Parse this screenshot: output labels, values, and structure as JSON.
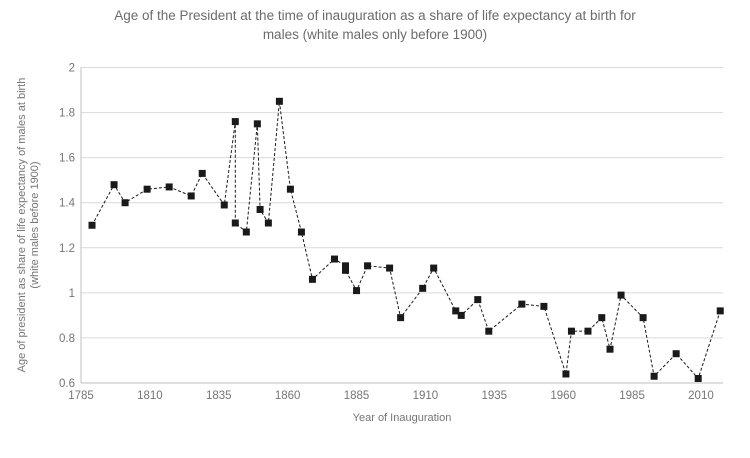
{
  "chart_data": {
    "type": "line",
    "title": "Age of the President at the time of inauguration as a share of life expectancy at birth for males (white males only before 1900)",
    "title_lines": [
      "Age of the President at the time of inauguration as a share of life expectancy at birth for",
      "males (white males only before 1900)"
    ],
    "xlabel": "Year of Inauguration",
    "ylabel": "Age of president as share of life expectancy of males at birth (white males before 1900)",
    "ylabel_lines": [
      "Age of president  as share of life expectancy of males at birth",
      "(white males  before 1900)"
    ],
    "x": [
      1789,
      1797,
      1801,
      1809,
      1817,
      1825,
      1829,
      1837,
      1841,
      1841,
      1845,
      1849,
      1850,
      1853,
      1857,
      1861,
      1865,
      1869,
      1877,
      1881,
      1881,
      1885,
      1889,
      1897,
      1901,
      1909,
      1913,
      1921,
      1923,
      1929,
      1933,
      1945,
      1953,
      1961,
      1963,
      1969,
      1974,
      1977,
      1981,
      1989,
      1993,
      2001,
      2009,
      2017
    ],
    "y": [
      1.3,
      1.48,
      1.4,
      1.46,
      1.47,
      1.43,
      1.53,
      1.39,
      1.76,
      1.31,
      1.27,
      1.75,
      1.37,
      1.31,
      1.85,
      1.46,
      1.27,
      1.06,
      1.15,
      1.12,
      1.1,
      1.01,
      1.12,
      1.11,
      0.89,
      1.02,
      1.11,
      0.92,
      0.9,
      0.97,
      0.83,
      0.95,
      0.94,
      0.64,
      0.83,
      0.83,
      0.89,
      0.75,
      0.99,
      0.89,
      0.63,
      0.73,
      0.62,
      0.92
    ],
    "x_ticks": [
      "1785",
      "1810",
      "1835",
      "1860",
      "1885",
      "1910",
      "1935",
      "1960",
      "1985",
      "2010"
    ],
    "x_tick_years": [
      1785,
      1810,
      1835,
      1860,
      1885,
      1910,
      1935,
      1960,
      1985,
      2010
    ],
    "y_ticks": [
      "2",
      "1.8",
      "1.6",
      "1.4",
      "1.2",
      "1",
      "0.8",
      "0.6"
    ],
    "y_tick_values": [
      2,
      1.8,
      1.6,
      1.4,
      1.2,
      1,
      0.8,
      0.6
    ],
    "xlim": [
      1785,
      2018
    ],
    "ylim": [
      0.6,
      2.0
    ],
    "grid": true,
    "legend": false,
    "marker": "square",
    "line_dash": "dashed",
    "colors": {
      "series": "#1a1a1a",
      "grid": "#d9d9d9",
      "axis": "#bfbfbf",
      "tick_text": "#757575",
      "title_text": "#6b6b6b",
      "background": "#ffffff"
    }
  }
}
